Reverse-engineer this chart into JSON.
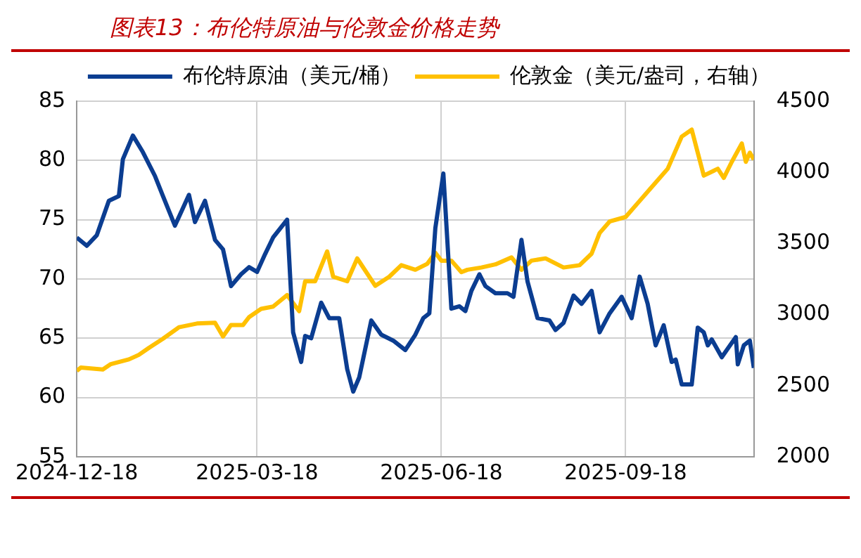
{
  "chart_data": {
    "type": "line",
    "title": "图表13：布伦特原油与伦敦金价格走势",
    "legend": "top",
    "grid": true,
    "marker": "none",
    "line_style": "solid",
    "xlim": [
      "2024-12-18",
      "2025-11-21"
    ],
    "xticks": [
      "2024-12-18",
      "2025-03-18",
      "2025-06-18",
      "2025-09-18"
    ],
    "ylim": [
      55,
      85
    ],
    "yticks": [
      55,
      60,
      65,
      70,
      75,
      80,
      85
    ],
    "y2lim": [
      2000,
      4500
    ],
    "y2ticks": [
      2000,
      2500,
      3000,
      3500,
      4000,
      4500
    ],
    "series": [
      {
        "name": "布伦特原油（美元/桶）",
        "color": "#0b3d91",
        "x": [
          "2024-12-18",
          "2024-12-23",
          "2024-12-28",
          "2025-01-03",
          "2025-01-08",
          "2025-01-10",
          "2025-01-15",
          "2025-01-20",
          "2025-01-26",
          "2025-01-30",
          "2025-02-05",
          "2025-02-12",
          "2025-02-15",
          "2025-02-20",
          "2025-02-25",
          "2025-03-01",
          "2025-03-05",
          "2025-03-10",
          "2025-03-14",
          "2025-03-18",
          "2025-03-22",
          "2025-03-26",
          "2025-04-02",
          "2025-04-05",
          "2025-04-09",
          "2025-04-11",
          "2025-04-14",
          "2025-04-19",
          "2025-04-23",
          "2025-04-28",
          "2025-05-02",
          "2025-05-05",
          "2025-05-08",
          "2025-05-14",
          "2025-05-19",
          "2025-05-25",
          "2025-05-31",
          "2025-06-05",
          "2025-06-09",
          "2025-06-12",
          "2025-06-15",
          "2025-06-19",
          "2025-06-23",
          "2025-06-27",
          "2025-06-30",
          "2025-07-03",
          "2025-07-07",
          "2025-07-10",
          "2025-07-15",
          "2025-07-21",
          "2025-07-24",
          "2025-07-28",
          "2025-07-31",
          "2025-08-05",
          "2025-08-11",
          "2025-08-14",
          "2025-08-18",
          "2025-08-23",
          "2025-08-27",
          "2025-09-01",
          "2025-09-05",
          "2025-09-10",
          "2025-09-16",
          "2025-09-21",
          "2025-09-25",
          "2025-09-29",
          "2025-10-03",
          "2025-10-07",
          "2025-10-11",
          "2025-10-13",
          "2025-10-16",
          "2025-10-21",
          "2025-10-24",
          "2025-10-27",
          "2025-10-29",
          "2025-10-31",
          "2025-11-05",
          "2025-11-12",
          "2025-11-13",
          "2025-11-16",
          "2025-11-19",
          "2025-11-21"
        ],
        "values": [
          73.5,
          72.8,
          73.7,
          76.6,
          77,
          80.1,
          82.1,
          80.7,
          78.7,
          77,
          74.5,
          77.1,
          74.8,
          76.6,
          73.3,
          72.5,
          69.4,
          70.4,
          71,
          70.6,
          72.1,
          73.5,
          75,
          65.5,
          63,
          65.2,
          65,
          68,
          66.7,
          66.7,
          62.4,
          60.5,
          61.7,
          66.5,
          65.3,
          64.8,
          64,
          65.3,
          66.7,
          67.1,
          74.3,
          78.9,
          67.5,
          67.7,
          67.3,
          69,
          70.4,
          69.4,
          68.8,
          68.8,
          68.5,
          73.3,
          69.8,
          66.7,
          66.5,
          65.7,
          66.3,
          68.6,
          67.9,
          69,
          65.5,
          67.1,
          68.5,
          66.7,
          70.2,
          67.9,
          64.4,
          66.1,
          63,
          63.2,
          61.1,
          61.1,
          65.9,
          65.5,
          64.4,
          64.9,
          63.4,
          65.1,
          62.8,
          64.4,
          64.8,
          62.5
        ]
      },
      {
        "name": "伦敦金（美元/盎司，右轴）",
        "color": "#ffc000",
        "axis": "y2",
        "x": [
          "2024-12-18",
          "2024-12-20",
          "2024-12-31",
          "2025-01-04",
          "2025-01-13",
          "2025-01-18",
          "2025-01-23",
          "2025-01-30",
          "2025-02-07",
          "2025-02-16",
          "2025-02-25",
          "2025-03-01",
          "2025-03-05",
          "2025-03-11",
          "2025-03-14",
          "2025-03-20",
          "2025-03-26",
          "2025-04-02",
          "2025-04-08",
          "2025-04-11",
          "2025-04-16",
          "2025-04-22",
          "2025-04-25",
          "2025-05-02",
          "2025-05-07",
          "2025-05-16",
          "2025-05-23",
          "2025-05-29",
          "2025-06-05",
          "2025-06-11",
          "2025-06-15",
          "2025-06-18",
          "2025-06-23",
          "2025-06-28",
          "2025-07-01",
          "2025-07-08",
          "2025-07-15",
          "2025-07-23",
          "2025-07-28",
          "2025-08-02",
          "2025-08-09",
          "2025-08-18",
          "2025-08-26",
          "2025-09-01",
          "2025-09-05",
          "2025-09-10",
          "2025-09-18",
          "2025-09-24",
          "2025-10-01",
          "2025-10-09",
          "2025-10-16",
          "2025-10-21",
          "2025-10-24",
          "2025-10-27",
          "2025-11-03",
          "2025-11-06",
          "2025-11-10",
          "2025-11-15",
          "2025-11-17",
          "2025-11-19",
          "2025-11-21"
        ],
        "values": [
          2604,
          2627,
          2614,
          2652,
          2685,
          2717,
          2766,
          2830,
          2911,
          2937,
          2943,
          2846,
          2927,
          2927,
          2982,
          3040,
          3056,
          3137,
          3024,
          3234,
          3234,
          3444,
          3266,
          3234,
          3395,
          3202,
          3266,
          3347,
          3315,
          3357,
          3434,
          3379,
          3379,
          3298,
          3315,
          3331,
          3353,
          3402,
          3315,
          3379,
          3395,
          3331,
          3347,
          3428,
          3573,
          3654,
          3686,
          3783,
          3896,
          4025,
          4251,
          4300,
          4138,
          3977,
          4025,
          3961,
          4074,
          4203,
          4074,
          4138,
          4090
        ]
      }
    ]
  }
}
